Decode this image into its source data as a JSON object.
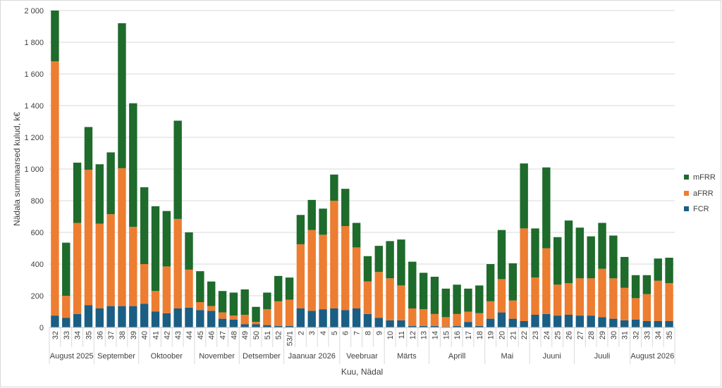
{
  "chart_data": {
    "type": "bar",
    "stacked": true,
    "ylabel": "Nädala summaarsed kulud, k€",
    "xlabel": "Kuu, Nädal",
    "ylim": [
      0,
      2000
    ],
    "yticks": [
      0,
      200,
      400,
      600,
      800,
      1000,
      1200,
      1400,
      1600,
      1800,
      2000
    ],
    "ytick_labels": [
      "0",
      "200",
      "400",
      "600",
      "800",
      "1 000",
      "1 200",
      "1 400",
      "1 600",
      "1 800",
      "2 000"
    ],
    "grid": true,
    "legend_position": "right",
    "categories": [
      "32",
      "33",
      "34",
      "35",
      "36",
      "37",
      "38",
      "39",
      "40",
      "41",
      "42",
      "43",
      "44",
      "45",
      "46",
      "47",
      "48",
      "49",
      "50",
      "51",
      "52",
      "53/1",
      "2",
      "3",
      "4",
      "5",
      "6",
      "7",
      "8",
      "9",
      "10",
      "11",
      "12",
      "13",
      "14",
      "15",
      "16",
      "17",
      "18",
      "19",
      "20",
      "21",
      "22",
      "23",
      "24",
      "25",
      "26",
      "27",
      "28",
      "29",
      "30",
      "31",
      "32",
      "33",
      "34",
      "35"
    ],
    "months": [
      {
        "label": "August 2025",
        "count": 4
      },
      {
        "label": "September",
        "count": 4
      },
      {
        "label": "Oktoober",
        "count": 5
      },
      {
        "label": "November",
        "count": 4
      },
      {
        "label": "Detsember",
        "count": 4
      },
      {
        "label": "Jaanuar 2026",
        "count": 5
      },
      {
        "label": "Veebruar",
        "count": 4
      },
      {
        "label": "Märts",
        "count": 4
      },
      {
        "label": "Aprill",
        "count": 5
      },
      {
        "label": "Mai",
        "count": 4
      },
      {
        "label": "Juuni",
        "count": 4
      },
      {
        "label": "Juuli",
        "count": 5
      },
      {
        "label": "August 2026",
        "count": 4
      }
    ],
    "series": [
      {
        "name": "FCR",
        "color": "#1a5e84",
        "values": [
          75,
          60,
          85,
          140,
          120,
          135,
          135,
          135,
          150,
          100,
          90,
          120,
          125,
          110,
          105,
          55,
          50,
          20,
          20,
          15,
          10,
          10,
          120,
          105,
          115,
          120,
          110,
          120,
          85,
          60,
          45,
          45,
          10,
          10,
          10,
          5,
          10,
          35,
          10,
          55,
          95,
          55,
          40,
          80,
          85,
          75,
          80,
          75,
          75,
          65,
          55,
          45,
          50,
          40,
          40,
          40
        ]
      },
      {
        "name": "aFRR",
        "color": "#ed7d31",
        "values": [
          1605,
          140,
          575,
          855,
          535,
          580,
          870,
          500,
          250,
          130,
          295,
          565,
          240,
          50,
          30,
          40,
          25,
          60,
          15,
          100,
          155,
          165,
          405,
          510,
          470,
          680,
          530,
          385,
          205,
          290,
          265,
          220,
          110,
          105,
          75,
          60,
          75,
          65,
          80,
          110,
          210,
          115,
          585,
          235,
          415,
          195,
          200,
          235,
          235,
          305,
          255,
          205,
          135,
          170,
          255,
          240
        ]
      },
      {
        "name": "mFRR",
        "color": "#1e6b2c",
        "values": [
          320,
          335,
          380,
          270,
          375,
          390,
          915,
          780,
          485,
          535,
          350,
          620,
          235,
          195,
          155,
          135,
          145,
          160,
          95,
          105,
          160,
          140,
          185,
          190,
          165,
          165,
          235,
          155,
          160,
          165,
          235,
          290,
          295,
          230,
          235,
          180,
          185,
          145,
          175,
          235,
          310,
          235,
          410,
          310,
          510,
          300,
          395,
          320,
          265,
          290,
          270,
          195,
          145,
          120,
          140,
          160
        ]
      }
    ]
  }
}
